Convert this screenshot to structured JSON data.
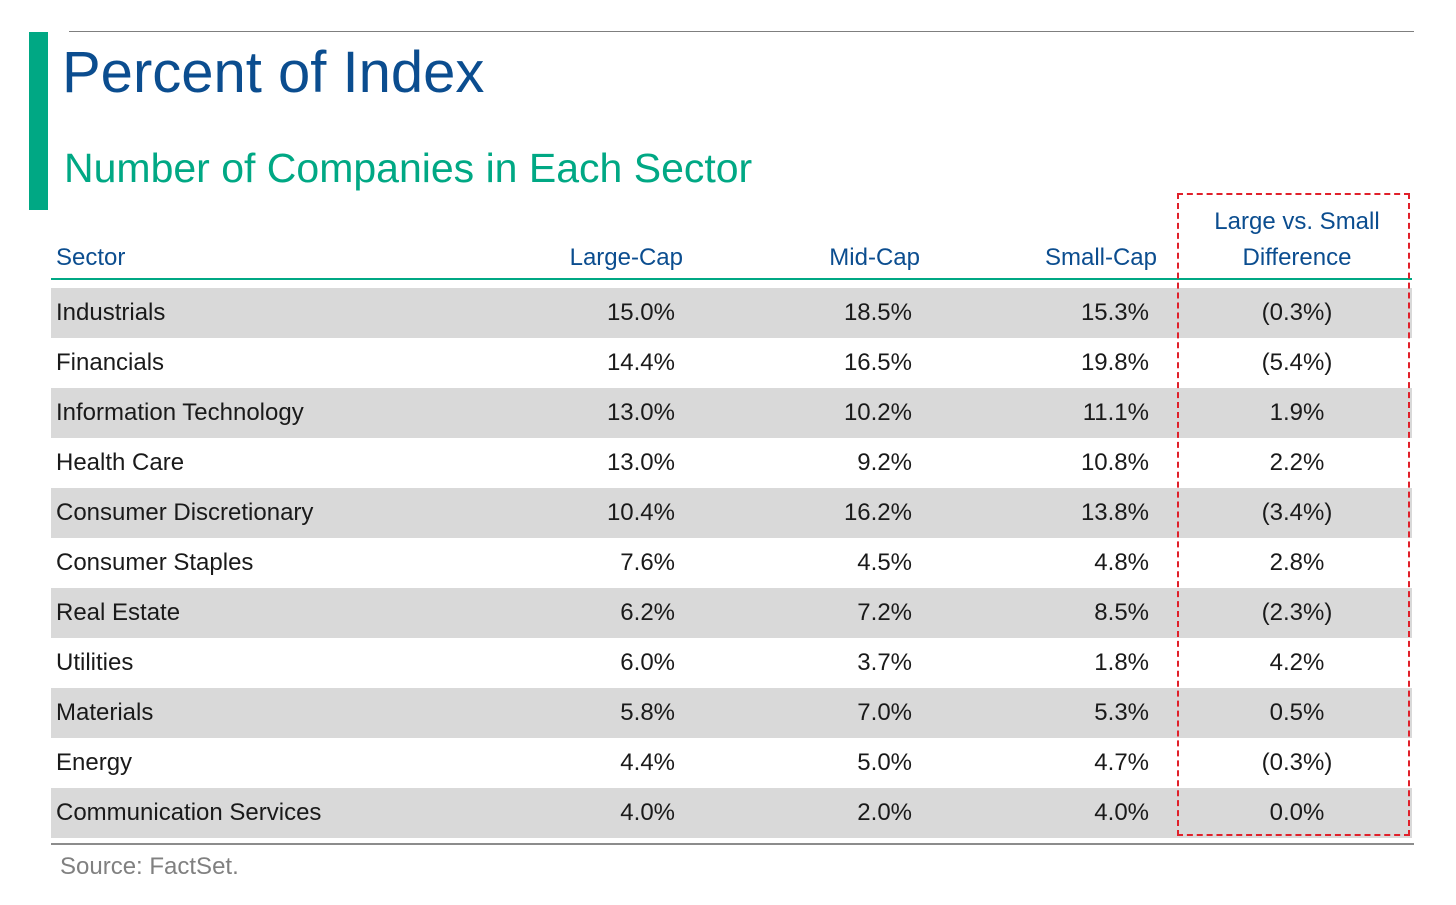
{
  "title": "Percent of Index",
  "subtitle": "Number of Companies in Each Sector",
  "colors": {
    "accent": "#00a884",
    "title": "#0b4d8f",
    "row_shade": "#d9d9d9",
    "highlight": "#e0202a"
  },
  "table": {
    "headers": {
      "sector": "Sector",
      "large": "Large-Cap",
      "mid": "Mid-Cap",
      "small": "Small-Cap",
      "diff_line1": "Large vs. Small",
      "diff_line2": "Difference"
    },
    "rows": [
      {
        "sector": "Industrials",
        "large": "15.0%",
        "mid": "18.5%",
        "small": "15.3%",
        "diff": "(0.3%)"
      },
      {
        "sector": "Financials",
        "large": "14.4%",
        "mid": "16.5%",
        "small": "19.8%",
        "diff": "(5.4%)"
      },
      {
        "sector": "Information Technology",
        "large": "13.0%",
        "mid": "10.2%",
        "small": "11.1%",
        "diff": "1.9%"
      },
      {
        "sector": "Health Care",
        "large": "13.0%",
        "mid": "9.2%",
        "small": "10.8%",
        "diff": "2.2%"
      },
      {
        "sector": "Consumer Discretionary",
        "large": "10.4%",
        "mid": "16.2%",
        "small": "13.8%",
        "diff": "(3.4%)"
      },
      {
        "sector": "Consumer Staples",
        "large": "7.6%",
        "mid": "4.5%",
        "small": "4.8%",
        "diff": "2.8%"
      },
      {
        "sector": "Real Estate",
        "large": "6.2%",
        "mid": "7.2%",
        "small": "8.5%",
        "diff": "(2.3%)"
      },
      {
        "sector": "Utilities",
        "large": "6.0%",
        "mid": "3.7%",
        "small": "1.8%",
        "diff": "4.2%"
      },
      {
        "sector": "Materials",
        "large": "5.8%",
        "mid": "7.0%",
        "small": "5.3%",
        "diff": "0.5%"
      },
      {
        "sector": "Energy",
        "large": "4.4%",
        "mid": "5.0%",
        "small": "4.7%",
        "diff": "(0.3%)"
      },
      {
        "sector": "Communication Services",
        "large": "4.0%",
        "mid": "2.0%",
        "small": "4.0%",
        "diff": "0.0%"
      }
    ]
  },
  "source": "Source: FactSet."
}
